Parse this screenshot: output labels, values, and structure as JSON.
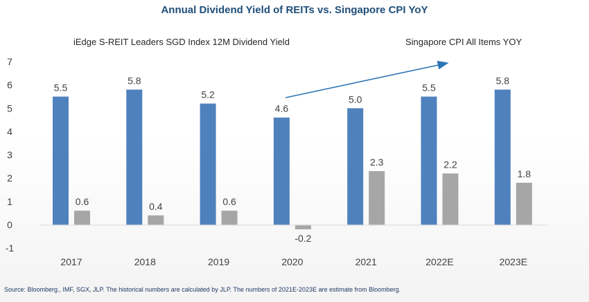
{
  "title": "Annual Dividend Yield of REITs vs. Singapore CPI YoY",
  "source": "Source: Bloomberg., IMF, SGX, JLP. The historical numbers are calculated by JLP. The numbers of 2021E-2023E are estimate from Bloomberg.",
  "chart_data": {
    "type": "bar",
    "categories": [
      "2017",
      "2018",
      "2019",
      "2020",
      "2021",
      "2022E",
      "2023E"
    ],
    "series": [
      {
        "name": "iEdge S-REIT Leaders SGD Index 12M Dividend Yield",
        "color": "#4f81bd",
        "values": [
          5.5,
          5.8,
          5.2,
          4.6,
          5.0,
          5.5,
          5.8
        ],
        "labels": [
          "5.5",
          "5.8",
          "5.2",
          "4.6",
          "5.0",
          "5.5",
          "5.8"
        ]
      },
      {
        "name": "Singapore CPI All Items YOY",
        "color": "#a6a6a6",
        "values": [
          0.6,
          0.4,
          0.6,
          -0.2,
          2.3,
          2.2,
          1.8
        ],
        "labels": [
          "0.6",
          "0.4",
          "0.6",
          "-0.2",
          "2.3",
          "2.2",
          "1.8"
        ]
      }
    ],
    "yticks": [
      "-1",
      "0",
      "1",
      "2",
      "3",
      "4",
      "5",
      "6",
      "7"
    ],
    "ylim": [
      -1,
      7
    ],
    "grid": false,
    "legend": "top",
    "annotation": "trend arrow"
  }
}
